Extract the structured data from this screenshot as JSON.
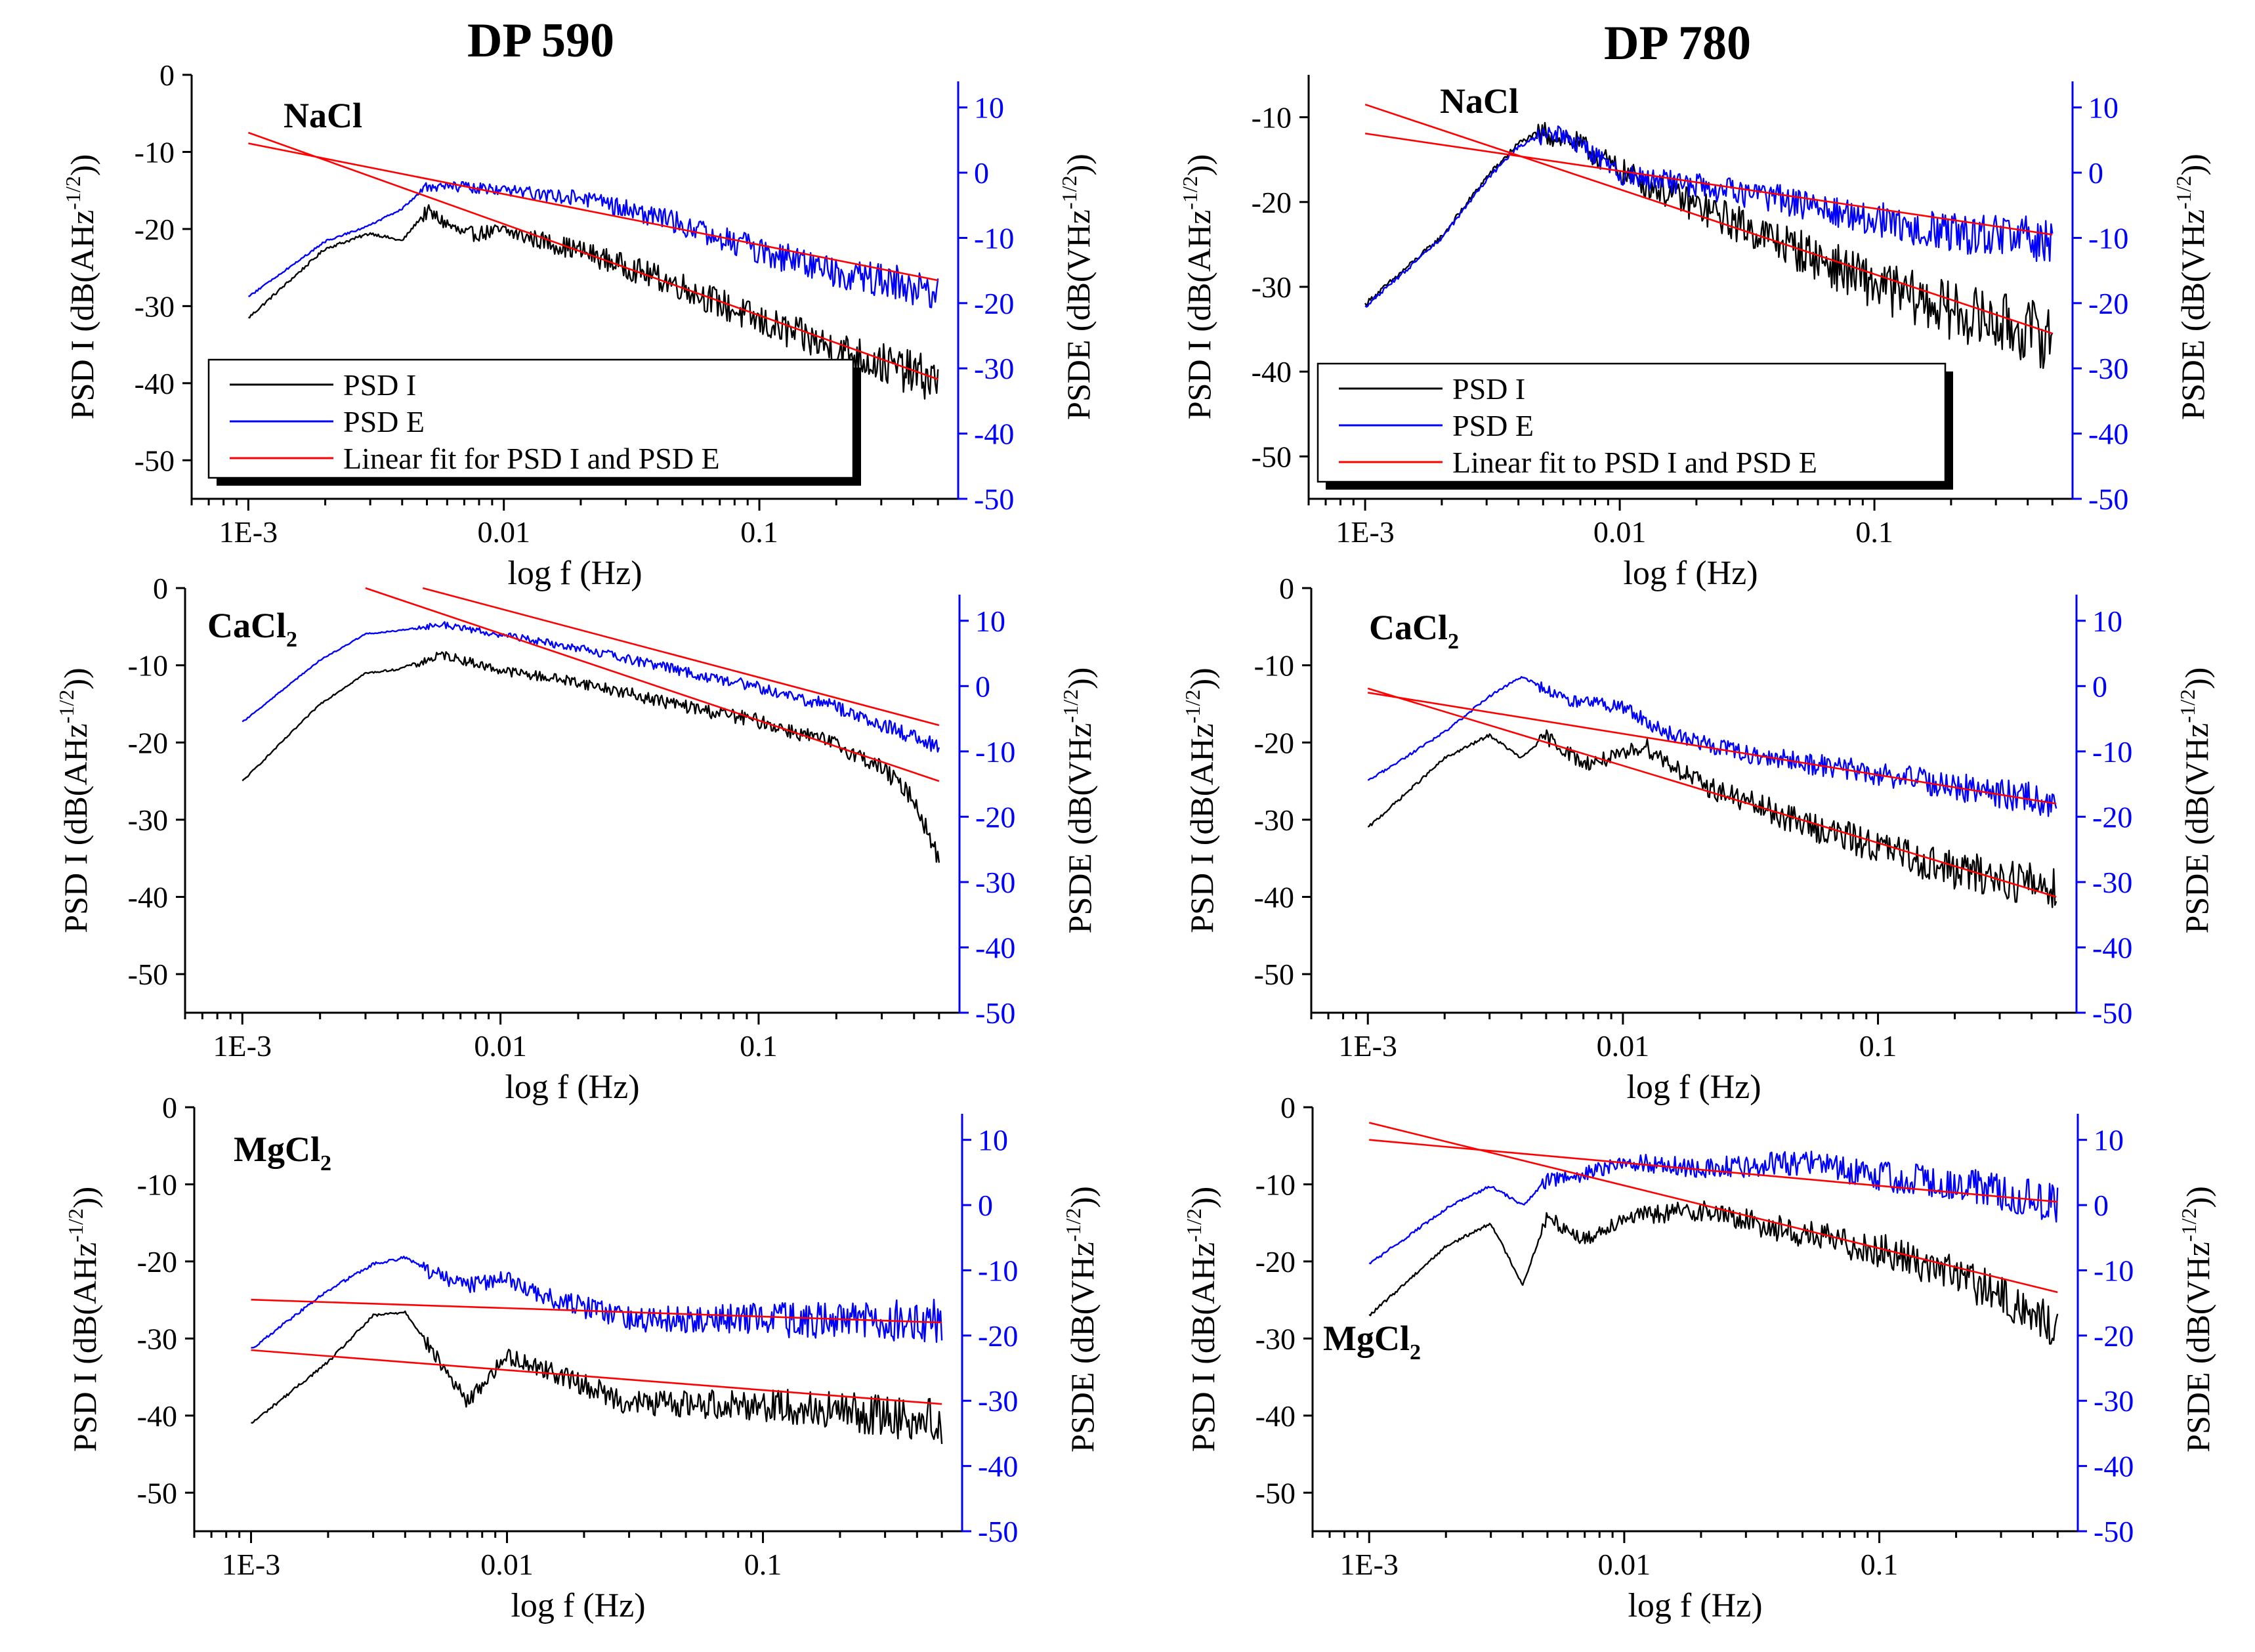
{
  "figure": {
    "columns": [
      "DP 590",
      "DP 780"
    ]
  },
  "colors": {
    "psd_i": "#000000",
    "psd_e": "#0000ff",
    "fit": "#ff0000"
  },
  "axes_common": {
    "xlabel": "log f (Hz)",
    "ylabel_left": "PSD I (dB(AHz^-1/2))",
    "ylabel_right": "PSDE (dB(VHz^-1/2))",
    "x_ticks": [
      "1E-3",
      "0.01",
      "0.1"
    ],
    "x_range_hz": [
      0.0006,
      0.6
    ],
    "left_ticks": [
      "0",
      "-10",
      "-20",
      "-30",
      "-40",
      "-50"
    ],
    "right_ticks": [
      "10",
      "0",
      "-10",
      "-20",
      "-30",
      "-40",
      "-50"
    ]
  },
  "chart_data": [
    {
      "type": "line",
      "column": "DP 590",
      "label": "NaCl",
      "label_sub": "",
      "legend": [
        "PSD I",
        "PSD E",
        "Linear fit for PSD I and PSD E"
      ],
      "left_range": [
        -55,
        0
      ],
      "left_ticks": [
        0,
        -10,
        -20,
        -30,
        -40,
        -50
      ],
      "right_range": [
        -50,
        15
      ],
      "right_ticks": [
        10,
        0,
        -10,
        -20,
        -30,
        -40,
        -50
      ],
      "series": [
        {
          "name": "PSD I",
          "axis": "left",
          "points": [
            [
              0.001,
              -31.5
            ],
            [
              0.002,
              -22.5
            ],
            [
              0.003,
              -20.5
            ],
            [
              0.004,
              -21.5
            ],
            [
              0.005,
              -17.5
            ],
            [
              0.007,
              -20.5
            ],
            [
              0.01,
              -20
            ],
            [
              0.02,
              -22.5
            ],
            [
              0.05,
              -27
            ],
            [
              0.1,
              -31.5
            ],
            [
              0.2,
              -35
            ],
            [
              0.5,
              -39
            ]
          ],
          "noise": [
            1.0,
            3.0
          ]
        },
        {
          "name": "PSD E",
          "axis": "right",
          "points": [
            [
              0.001,
              -19
            ],
            [
              0.002,
              -10.5
            ],
            [
              0.003,
              -8
            ],
            [
              0.004,
              -5.5
            ],
            [
              0.005,
              -2
            ],
            [
              0.007,
              -2
            ],
            [
              0.01,
              -2.5
            ],
            [
              0.02,
              -3.5
            ],
            [
              0.05,
              -7.5
            ],
            [
              0.1,
              -11.5
            ],
            [
              0.2,
              -14.5
            ],
            [
              0.5,
              -17.5
            ]
          ],
          "noise": [
            0.8,
            3.0
          ]
        },
        {
          "name": "Linear fit PSD I",
          "axis": "left",
          "points": [
            [
              0.001,
              -7.5
            ],
            [
              0.5,
              -39.5
            ]
          ]
        },
        {
          "name": "Linear fit PSD E",
          "axis": "right",
          "points": [
            [
              0.001,
              4.5
            ],
            [
              0.5,
              -16.5
            ]
          ]
        }
      ]
    },
    {
      "type": "line",
      "column": "DP 780",
      "label": "NaCl",
      "label_sub": "",
      "legend": [
        "PSD I",
        "PSD E",
        "Linear fit to PSD I and PSD E"
      ],
      "left_range": [
        -55,
        -5
      ],
      "left_ticks": [
        -10,
        -20,
        -30,
        -40,
        -50
      ],
      "right_range": [
        -50,
        15
      ],
      "right_ticks": [
        10,
        0,
        -10,
        -20,
        -30,
        -40,
        -50
      ],
      "series": [
        {
          "name": "PSD I",
          "axis": "left",
          "points": [
            [
              0.001,
              -32
            ],
            [
              0.002,
              -24
            ],
            [
              0.003,
              -17
            ],
            [
              0.004,
              -13
            ],
            [
              0.005,
              -11.5
            ],
            [
              0.006,
              -12
            ],
            [
              0.008,
              -14
            ],
            [
              0.01,
              -16
            ],
            [
              0.02,
              -20
            ],
            [
              0.05,
              -25
            ],
            [
              0.1,
              -29
            ],
            [
              0.2,
              -32
            ],
            [
              0.5,
              -35
            ]
          ],
          "noise": [
            1.5,
            4.0
          ]
        },
        {
          "name": "PSD E",
          "axis": "right",
          "points": [
            [
              0.001,
              -20.5
            ],
            [
              0.002,
              -10
            ],
            [
              0.003,
              -1
            ],
            [
              0.004,
              4
            ],
            [
              0.005,
              6
            ],
            [
              0.006,
              6
            ],
            [
              0.008,
              3
            ],
            [
              0.01,
              0
            ],
            [
              0.02,
              -1.5
            ],
            [
              0.05,
              -4
            ],
            [
              0.1,
              -6.5
            ],
            [
              0.2,
              -8.5
            ],
            [
              0.5,
              -9.5
            ]
          ],
          "noise": [
            1.5,
            3.5
          ]
        },
        {
          "name": "Linear fit PSD I",
          "axis": "left",
          "points": [
            [
              0.001,
              -8.5
            ],
            [
              0.5,
              -35.5
            ]
          ]
        },
        {
          "name": "Linear fit PSD E",
          "axis": "right",
          "points": [
            [
              0.001,
              6
            ],
            [
              0.5,
              -9.5
            ]
          ]
        }
      ]
    },
    {
      "type": "line",
      "column": "DP 590",
      "label": "CaCl",
      "label_sub": "2",
      "left_range": [
        -55,
        0
      ],
      "left_ticks": [
        0,
        -10,
        -20,
        -30,
        -40,
        -50
      ],
      "right_range": [
        -50,
        15
      ],
      "right_ticks": [
        10,
        0,
        -10,
        -20,
        -30,
        -40,
        -50
      ],
      "series": [
        {
          "name": "PSD I",
          "axis": "left",
          "points": [
            [
              0.001,
              -25
            ],
            [
              0.002,
              -15
            ],
            [
              0.003,
              -11
            ],
            [
              0.004,
              -10.5
            ],
            [
              0.006,
              -8.5
            ],
            [
              0.01,
              -10.5
            ],
            [
              0.02,
              -12
            ],
            [
              0.05,
              -15
            ],
            [
              0.1,
              -17
            ],
            [
              0.2,
              -20
            ],
            [
              0.3,
              -23
            ],
            [
              0.4,
              -27
            ],
            [
              0.5,
              -35
            ]
          ],
          "noise": [
            0.6,
            1.2
          ]
        },
        {
          "name": "PSD E",
          "axis": "right",
          "points": [
            [
              0.001,
              -5.5
            ],
            [
              0.002,
              4
            ],
            [
              0.003,
              8
            ],
            [
              0.004,
              8.5
            ],
            [
              0.006,
              9.5
            ],
            [
              0.01,
              8
            ],
            [
              0.02,
              6
            ],
            [
              0.05,
              2.5
            ],
            [
              0.1,
              0
            ],
            [
              0.2,
              -3
            ],
            [
              0.5,
              -9
            ]
          ],
          "noise": [
            0.5,
            1.2
          ]
        },
        {
          "name": "Linear fit PSD I",
          "axis": "left",
          "points": [
            [
              0.003,
              0
            ],
            [
              0.5,
              -25
            ]
          ]
        },
        {
          "name": "Linear fit PSD E",
          "axis": "right",
          "points": [
            [
              0.005,
              15
            ],
            [
              0.5,
              -6
            ]
          ]
        }
      ]
    },
    {
      "type": "line",
      "column": "DP 780",
      "label": "CaCl",
      "label_sub": "2",
      "left_range": [
        -55,
        0
      ],
      "left_ticks": [
        0,
        -10,
        -20,
        -30,
        -40,
        -50
      ],
      "right_range": [
        -50,
        15
      ],
      "right_ticks": [
        10,
        0,
        -10,
        -20,
        -30,
        -40,
        -50
      ],
      "series": [
        {
          "name": "PSD I",
          "axis": "left",
          "points": [
            [
              0.001,
              -31
            ],
            [
              0.002,
              -22
            ],
            [
              0.003,
              -19
            ],
            [
              0.004,
              -22
            ],
            [
              0.005,
              -19
            ],
            [
              0.007,
              -22.5
            ],
            [
              0.01,
              -21.5
            ],
            [
              0.012,
              -20
            ],
            [
              0.02,
              -25
            ],
            [
              0.05,
              -30
            ],
            [
              0.1,
              -33
            ],
            [
              0.2,
              -36
            ],
            [
              0.5,
              -38
            ]
          ],
          "noise": [
            1.0,
            3.0
          ]
        },
        {
          "name": "PSD E",
          "axis": "right",
          "points": [
            [
              0.001,
              -14.5
            ],
            [
              0.002,
              -7
            ],
            [
              0.003,
              -1.5
            ],
            [
              0.004,
              1.5
            ],
            [
              0.006,
              -2
            ],
            [
              0.01,
              -3
            ],
            [
              0.015,
              -7
            ],
            [
              0.03,
              -10
            ],
            [
              0.1,
              -13
            ],
            [
              0.3,
              -16
            ],
            [
              0.5,
              -17
            ]
          ],
          "noise": [
            1.0,
            2.5
          ]
        },
        {
          "name": "Linear fit PSD I",
          "axis": "left",
          "points": [
            [
              0.001,
              -13
            ],
            [
              0.5,
              -40
            ]
          ]
        },
        {
          "name": "Linear fit PSD E",
          "axis": "right",
          "points": [
            [
              0.001,
              -1
            ],
            [
              0.5,
              -18
            ]
          ]
        }
      ]
    },
    {
      "type": "line",
      "column": "DP 590",
      "label": "MgCl",
      "label_sub": "2",
      "left_range": [
        -55,
        0
      ],
      "left_ticks": [
        0,
        -10,
        -20,
        -30,
        -40,
        -50
      ],
      "right_range": [
        -50,
        15
      ],
      "right_ticks": [
        10,
        0,
        -10,
        -20,
        -30,
        -40,
        -50
      ],
      "series": [
        {
          "name": "PSD I",
          "axis": "left",
          "points": [
            [
              0.001,
              -41
            ],
            [
              0.002,
              -33
            ],
            [
              0.003,
              -27
            ],
            [
              0.004,
              -26.5
            ],
            [
              0.005,
              -31
            ],
            [
              0.007,
              -38
            ],
            [
              0.01,
              -32
            ],
            [
              0.015,
              -34
            ],
            [
              0.03,
              -38
            ],
            [
              0.1,
              -38
            ],
            [
              0.5,
              -40
            ]
          ],
          "noise": [
            1.0,
            3.0
          ]
        },
        {
          "name": "PSD E",
          "axis": "right",
          "points": [
            [
              0.001,
              -22
            ],
            [
              0.002,
              -13
            ],
            [
              0.003,
              -9
            ],
            [
              0.004,
              -8
            ],
            [
              0.005,
              -10
            ],
            [
              0.007,
              -12
            ],
            [
              0.01,
              -11
            ],
            [
              0.015,
              -14
            ],
            [
              0.03,
              -17
            ],
            [
              0.1,
              -17
            ],
            [
              0.5,
              -17
            ]
          ],
          "noise": [
            1.2,
            3.5
          ]
        },
        {
          "name": "Linear fit PSD I",
          "axis": "left",
          "points": [
            [
              0.001,
              -31.5
            ],
            [
              0.5,
              -38.5
            ]
          ]
        },
        {
          "name": "Linear fit PSD E",
          "axis": "right",
          "points": [
            [
              0.001,
              -14.5
            ],
            [
              0.5,
              -18
            ]
          ]
        }
      ]
    },
    {
      "type": "line",
      "column": "DP 780",
      "label": "MgCl",
      "label_sub": "2",
      "left_range": [
        -55,
        0
      ],
      "left_ticks": [
        0,
        -10,
        -20,
        -30,
        -40,
        -50
      ],
      "right_range": [
        -50,
        15
      ],
      "right_ticks": [
        10,
        0,
        -10,
        -20,
        -30,
        -40,
        -50
      ],
      "series": [
        {
          "name": "PSD I",
          "axis": "left",
          "points": [
            [
              0.001,
              -27
            ],
            [
              0.002,
              -18
            ],
            [
              0.003,
              -15
            ],
            [
              0.004,
              -23
            ],
            [
              0.005,
              -14
            ],
            [
              0.007,
              -17
            ],
            [
              0.01,
              -14
            ],
            [
              0.02,
              -13
            ],
            [
              0.05,
              -16
            ],
            [
              0.1,
              -18
            ],
            [
              0.2,
              -21
            ],
            [
              0.3,
              -24
            ],
            [
              0.5,
              -28
            ]
          ],
          "noise": [
            1.0,
            3.0
          ]
        },
        {
          "name": "PSD E",
          "axis": "right",
          "points": [
            [
              0.001,
              -9
            ],
            [
              0.002,
              -0.5
            ],
            [
              0.003,
              3
            ],
            [
              0.004,
              0
            ],
            [
              0.005,
              4
            ],
            [
              0.007,
              5
            ],
            [
              0.01,
              7
            ],
            [
              0.02,
              6
            ],
            [
              0.05,
              7
            ],
            [
              0.1,
              5
            ],
            [
              0.2,
              4
            ],
            [
              0.5,
              1
            ]
          ],
          "noise": [
            1.2,
            3.0
          ]
        },
        {
          "name": "Linear fit PSD I",
          "axis": "left",
          "points": [
            [
              0.001,
              -2
            ],
            [
              0.5,
              -24
            ]
          ]
        },
        {
          "name": "Linear fit PSD E",
          "axis": "right",
          "points": [
            [
              0.001,
              10
            ],
            [
              0.5,
              0.5
            ]
          ]
        }
      ]
    }
  ]
}
